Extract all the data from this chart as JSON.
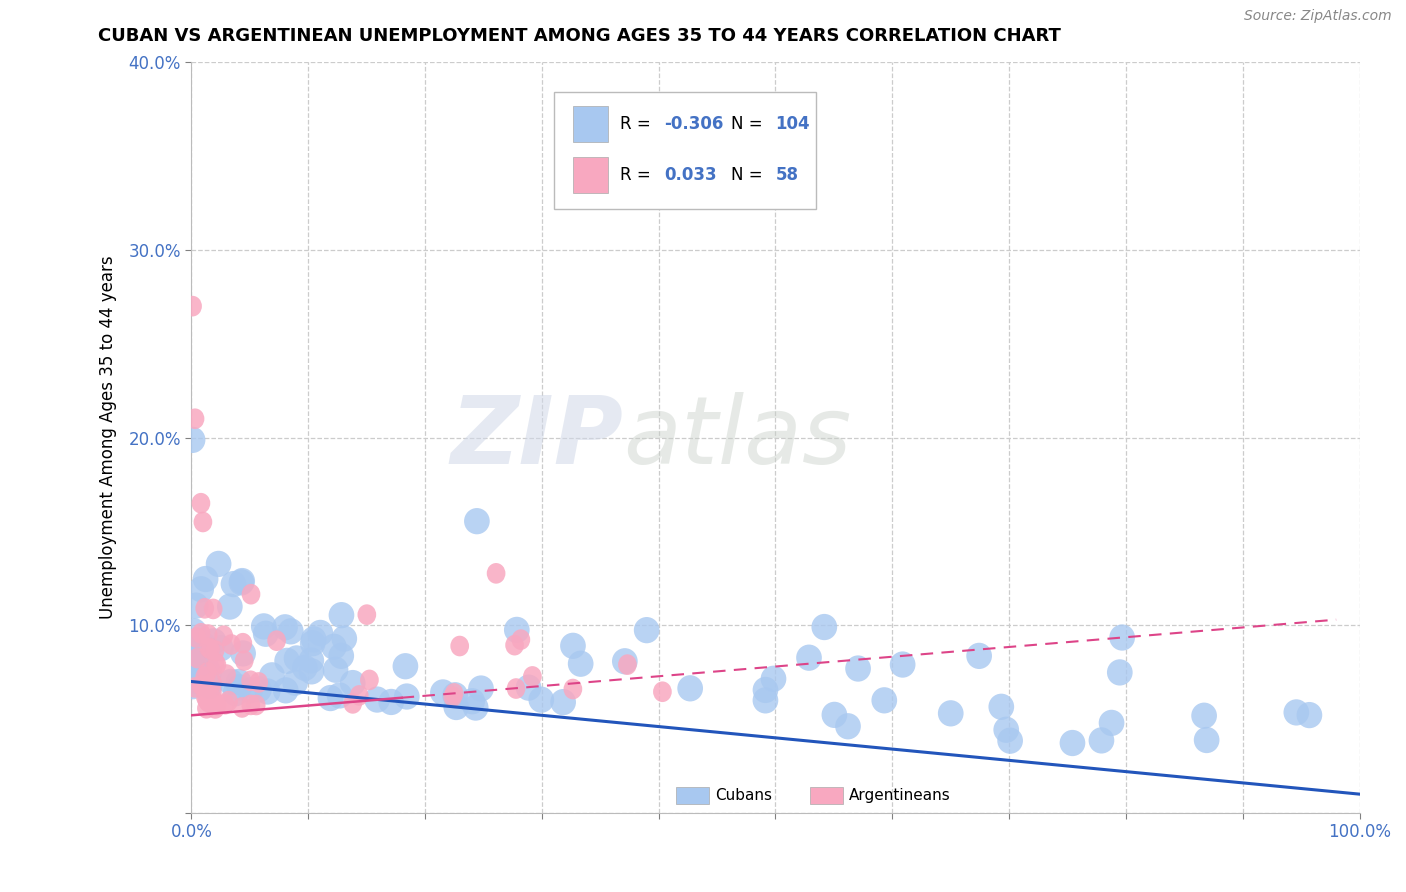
{
  "title": "CUBAN VS ARGENTINEAN UNEMPLOYMENT AMONG AGES 35 TO 44 YEARS CORRELATION CHART",
  "source": "Source: ZipAtlas.com",
  "ylabel": "Unemployment Among Ages 35 to 44 years",
  "xlim": [
    0.0,
    1.0
  ],
  "ylim": [
    0.0,
    0.4
  ],
  "xticks": [
    0.0,
    0.1,
    0.2,
    0.3,
    0.4,
    0.5,
    0.6,
    0.7,
    0.8,
    0.9,
    1.0
  ],
  "yticks": [
    0.0,
    0.1,
    0.2,
    0.3,
    0.4
  ],
  "blue_color": "#A8C8F0",
  "pink_color": "#F8A8C0",
  "trend_blue_color": "#2255BB",
  "trend_pink_color": "#DD4488",
  "legend_R_blue": "-0.306",
  "legend_N_blue": "104",
  "legend_R_pink": "0.033",
  "legend_N_pink": "58",
  "watermark_zip": "ZIP",
  "watermark_atlas": "atlas",
  "legend_text_color": "#4472C4",
  "legend_R_color": "#4472C4",
  "legend_N_color": "#4472C4"
}
